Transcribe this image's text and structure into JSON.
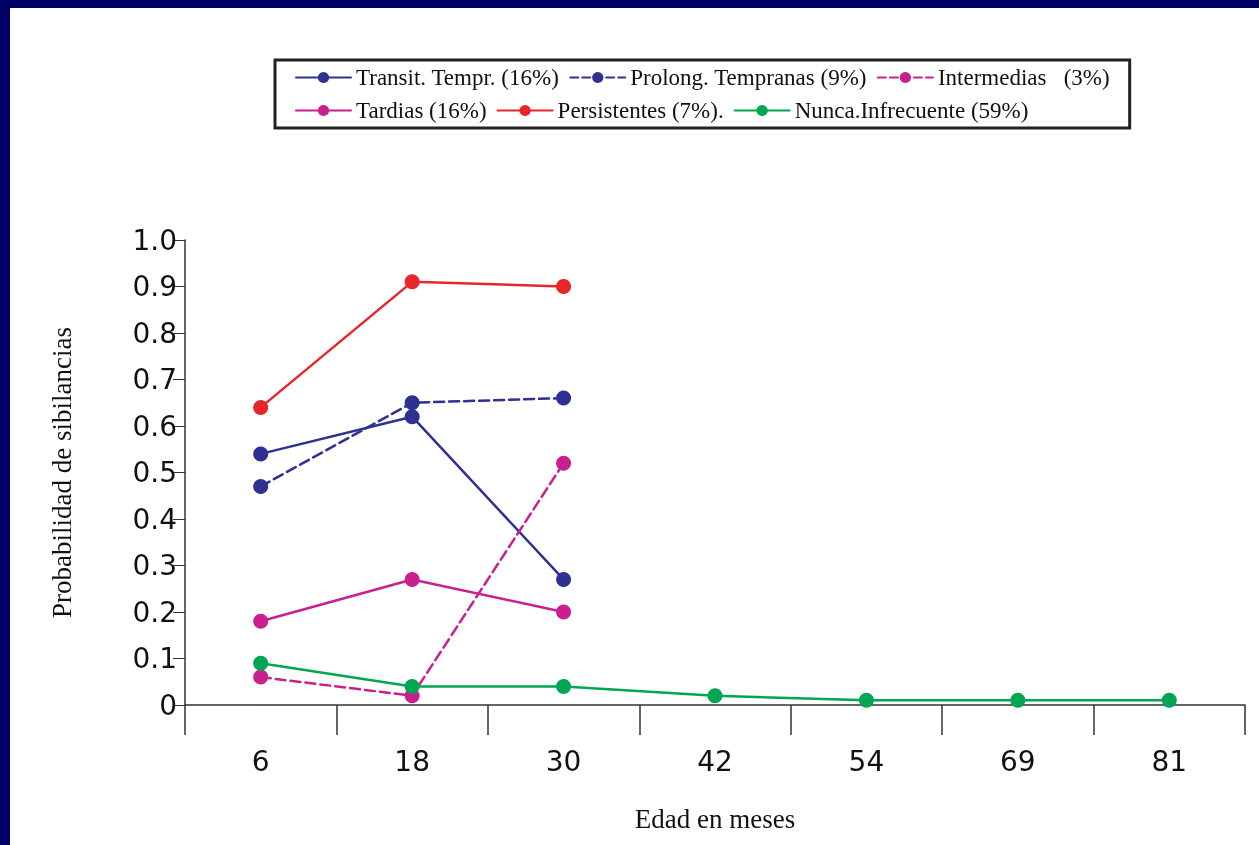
{
  "chart_data": {
    "type": "line",
    "xlabel": "Edad en meses",
    "ylabel": "Probabilidad de sibilancias",
    "categories": [
      "6",
      "18",
      "30",
      "42",
      "54",
      "69",
      "81"
    ],
    "series": [
      {
        "name": "Transit. Tempr. (16%)",
        "color": "#2e3192",
        "line_style": "solid",
        "values": [
          0.54,
          0.62,
          0.27,
          null,
          null,
          null,
          null
        ]
      },
      {
        "name": "Prolong. Tempranas (9%)",
        "color": "#2e3192",
        "line_style": "dashed",
        "values": [
          0.47,
          0.65,
          0.66,
          null,
          null,
          null,
          null
        ]
      },
      {
        "name": "Intermedias   (3%)",
        "color": "#c8208e",
        "line_style": "dashed",
        "values": [
          0.06,
          0.02,
          0.52,
          null,
          null,
          null,
          null
        ]
      },
      {
        "name": "Tardias (16%)",
        "color": "#c8208e",
        "line_style": "solid",
        "values": [
          0.18,
          0.27,
          0.2,
          null,
          null,
          null,
          null
        ]
      },
      {
        "name": "Persistentes (7%).",
        "color": "#e8262a",
        "line_style": "solid",
        "values": [
          0.64,
          0.91,
          0.9,
          null,
          null,
          null,
          null
        ]
      },
      {
        "name": "Nunca.Infrecuente (59%)",
        "color": "#00a651",
        "line_style": "solid",
        "values": [
          0.09,
          0.04,
          0.04,
          0.02,
          0.01,
          0.01,
          0.01
        ]
      }
    ],
    "ylim": [
      0,
      1
    ],
    "yticks": [
      0,
      0.1,
      0.2,
      0.3,
      0.4,
      0.5,
      0.6,
      0.7,
      0.8,
      0.9,
      {
        "value": 1,
        "label": "1.0"
      }
    ],
    "grid": false,
    "legend": "top",
    "marker": "circle"
  }
}
